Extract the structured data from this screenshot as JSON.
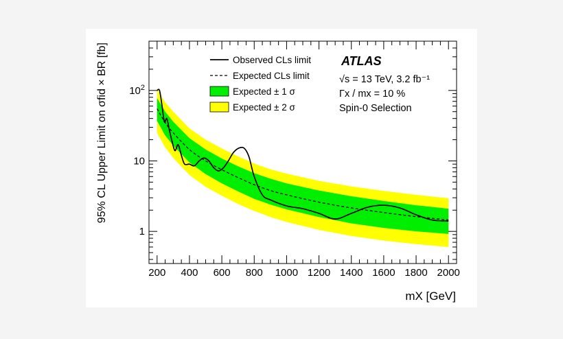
{
  "chart_data": {
    "type": "line",
    "experiment": "ATLAS",
    "info_lines": [
      "√s = 13 TeV, 3.2 fb⁻¹",
      "Γx / mx = 10 %",
      "Spin-0 Selection"
    ],
    "xlabel": "mX [GeV]",
    "ylabel": "95% CL Upper Limit on σfid × BR [fb]",
    "x_scale": "linear",
    "y_scale": "log",
    "xlim": [
      150,
      2050
    ],
    "ylim": [
      0.35,
      500
    ],
    "x_ticks": [
      200,
      400,
      600,
      800,
      1000,
      1200,
      1400,
      1600,
      1800,
      2000
    ],
    "y_ticks": [
      {
        "value": 100,
        "label": "10²"
      },
      {
        "value": 10,
        "label": "10"
      },
      {
        "value": 1,
        "label": "1"
      }
    ],
    "grid": false,
    "legend_position": "top-left",
    "legend": [
      {
        "label": "Observed CLs limit",
        "style": "solid-line"
      },
      {
        "label": "Expected CLs limit",
        "style": "dashed-line"
      },
      {
        "label": "Expected ± 1 σ",
        "style": "box",
        "color": "#00ee00"
      },
      {
        "label": "Expected ± 2 σ",
        "style": "box",
        "color": "#ffff00"
      }
    ],
    "colors": {
      "band_2sigma": "#ffff00",
      "band_1sigma": "#00ee00",
      "lines": "#000000",
      "background": "#ffffff"
    },
    "expected": {
      "x": [
        200,
        250,
        300,
        400,
        500,
        600,
        700,
        800,
        900,
        1000,
        1200,
        1400,
        1600,
        1800,
        2000
      ],
      "median": [
        55,
        35,
        25,
        14.5,
        10,
        7.5,
        5.8,
        4.6,
        3.8,
        3.3,
        2.6,
        2.15,
        1.85,
        1.62,
        1.45
      ],
      "minus1": [
        37,
        23,
        16.5,
        9.5,
        6.5,
        4.8,
        3.7,
        2.9,
        2.4,
        2.05,
        1.6,
        1.3,
        1.12,
        1.0,
        0.92
      ],
      "plus1": [
        78,
        50,
        36,
        21,
        14.5,
        10.8,
        8.4,
        6.7,
        5.6,
        4.8,
        3.8,
        3.15,
        2.7,
        2.35,
        2.1
      ],
      "minus2": [
        25,
        15.5,
        11,
        6.3,
        4.3,
        3.2,
        2.45,
        1.95,
        1.6,
        1.36,
        1.05,
        0.86,
        0.74,
        0.66,
        0.6
      ],
      "plus2": [
        105,
        68,
        50,
        29,
        20,
        15,
        11.6,
        9.2,
        7.6,
        6.6,
        5.2,
        4.35,
        3.75,
        3.3,
        2.95
      ]
    },
    "observed": {
      "x": [
        200,
        215,
        230,
        245,
        260,
        275,
        290,
        310,
        330,
        350,
        370,
        400,
        430,
        460,
        490,
        520,
        550,
        580,
        610,
        640,
        670,
        700,
        730,
        750,
        770,
        800,
        850,
        900,
        1000,
        1100,
        1200,
        1300,
        1400,
        1500,
        1600,
        1700,
        1800,
        1900,
        2000
      ],
      "y": [
        100,
        100,
        62,
        36,
        40,
        28,
        20,
        14,
        17,
        12,
        9,
        9,
        8.5,
        10,
        11,
        10,
        8,
        7.2,
        8,
        10,
        13,
        15,
        15.5,
        14,
        11,
        6,
        3.3,
        2.8,
        2.3,
        2.1,
        1.8,
        1.5,
        1.8,
        2.2,
        2.35,
        2.15,
        1.72,
        1.45,
        1.4
      ]
    }
  }
}
